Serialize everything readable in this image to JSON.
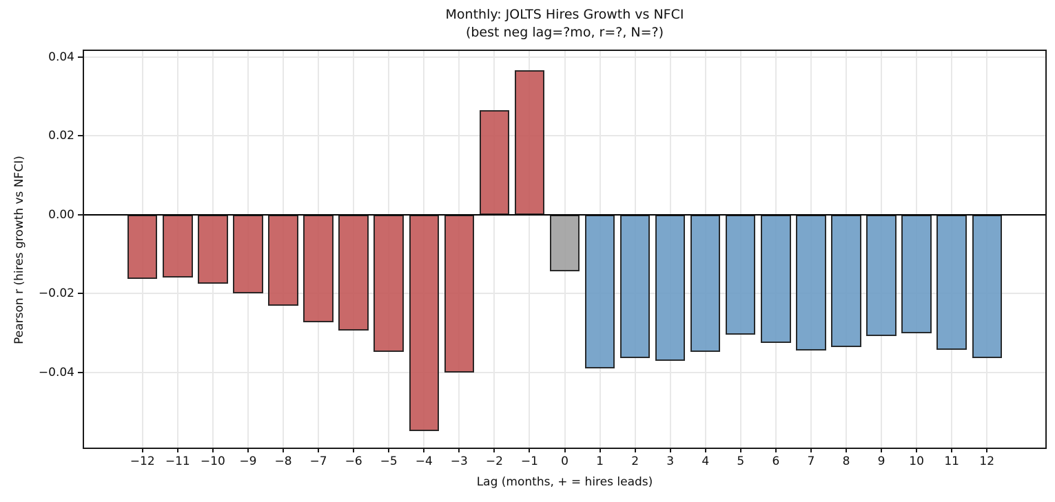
{
  "figure": {
    "title_line1": "Monthly: JOLTS Hires Growth vs NFCI",
    "title_line2": "(best neg lag=?mo, r=?, N=?)",
    "xlabel": "Lag (months, + = hires leads)",
    "ylabel": "Pearson r (hires growth vs NFCI)"
  },
  "chart_data": {
    "type": "bar",
    "title": "Monthly: JOLTS Hires Growth vs NFCI (best neg lag=?mo, r=?, N=?)",
    "xlabel": "Lag (months, + = hires leads)",
    "ylabel": "Pearson r (hires growth vs NFCI)",
    "grid": true,
    "legend": false,
    "xlim": [
      -13.66,
      13.66
    ],
    "ylim": [
      -0.059,
      0.0415
    ],
    "bar_width_fraction": 0.85,
    "yticks": [
      {
        "value": 0.04,
        "label": "0.04"
      },
      {
        "value": 0.02,
        "label": "0.02"
      },
      {
        "value": 0.0,
        "label": "0.00"
      },
      {
        "value": -0.02,
        "label": "−0.02"
      },
      {
        "value": -0.04,
        "label": "−0.04"
      }
    ],
    "bars": [
      {
        "lag": -12,
        "label": "−12",
        "r": -0.0163,
        "group": "neg_lag"
      },
      {
        "lag": -11,
        "label": "−11",
        "r": -0.0159,
        "group": "neg_lag"
      },
      {
        "lag": -10,
        "label": "−10",
        "r": -0.0175,
        "group": "neg_lag"
      },
      {
        "lag": -9,
        "label": "−9",
        "r": -0.02,
        "group": "neg_lag"
      },
      {
        "lag": -8,
        "label": "−8",
        "r": -0.0231,
        "group": "neg_lag"
      },
      {
        "lag": -7,
        "label": "−7",
        "r": -0.0272,
        "group": "neg_lag"
      },
      {
        "lag": -6,
        "label": "−6",
        "r": -0.0294,
        "group": "neg_lag"
      },
      {
        "lag": -5,
        "label": "−5",
        "r": -0.0348,
        "group": "neg_lag"
      },
      {
        "lag": -4,
        "label": "−4",
        "r": -0.0548,
        "group": "neg_lag"
      },
      {
        "lag": -3,
        "label": "−3",
        "r": -0.04,
        "group": "neg_lag"
      },
      {
        "lag": -2,
        "label": "−2",
        "r": 0.0265,
        "group": "neg_lag"
      },
      {
        "lag": -1,
        "label": "−1",
        "r": 0.0366,
        "group": "neg_lag"
      },
      {
        "lag": 0,
        "label": "0",
        "r": -0.0144,
        "group": "zero_lag"
      },
      {
        "lag": 1,
        "label": "1",
        "r": -0.0389,
        "group": "pos_lag"
      },
      {
        "lag": 2,
        "label": "2",
        "r": -0.0364,
        "group": "pos_lag"
      },
      {
        "lag": 3,
        "label": "3",
        "r": -0.037,
        "group": "pos_lag"
      },
      {
        "lag": 4,
        "label": "4",
        "r": -0.0347,
        "group": "pos_lag"
      },
      {
        "lag": 5,
        "label": "5",
        "r": -0.0304,
        "group": "pos_lag"
      },
      {
        "lag": 6,
        "label": "6",
        "r": -0.0325,
        "group": "pos_lag"
      },
      {
        "lag": 7,
        "label": "7",
        "r": -0.0344,
        "group": "pos_lag"
      },
      {
        "lag": 8,
        "label": "8",
        "r": -0.0336,
        "group": "pos_lag"
      },
      {
        "lag": 9,
        "label": "9",
        "r": -0.0307,
        "group": "pos_lag"
      },
      {
        "lag": 10,
        "label": "10",
        "r": -0.0301,
        "group": "pos_lag"
      },
      {
        "lag": 11,
        "label": "11",
        "r": -0.0342,
        "group": "pos_lag"
      },
      {
        "lag": 12,
        "label": "12",
        "r": -0.0364,
        "group": "pos_lag"
      }
    ],
    "colors": {
      "neg_lag": "rgba(194,84,84,0.88)",
      "zero_lag": "rgba(157,157,157,0.88)",
      "pos_lag": "rgba(105,154,196,0.88)",
      "neg_lag_hex": "#c96868",
      "zero_lag_hex": "#a9a9a9",
      "pos_lag_hex": "#7ba6cb",
      "edge": "rgba(35,35,35,0.95)",
      "grid": "#e8e8e8",
      "zero_line": "#000000",
      "spine": "#1a1a1a",
      "background": "#ffffff"
    }
  }
}
